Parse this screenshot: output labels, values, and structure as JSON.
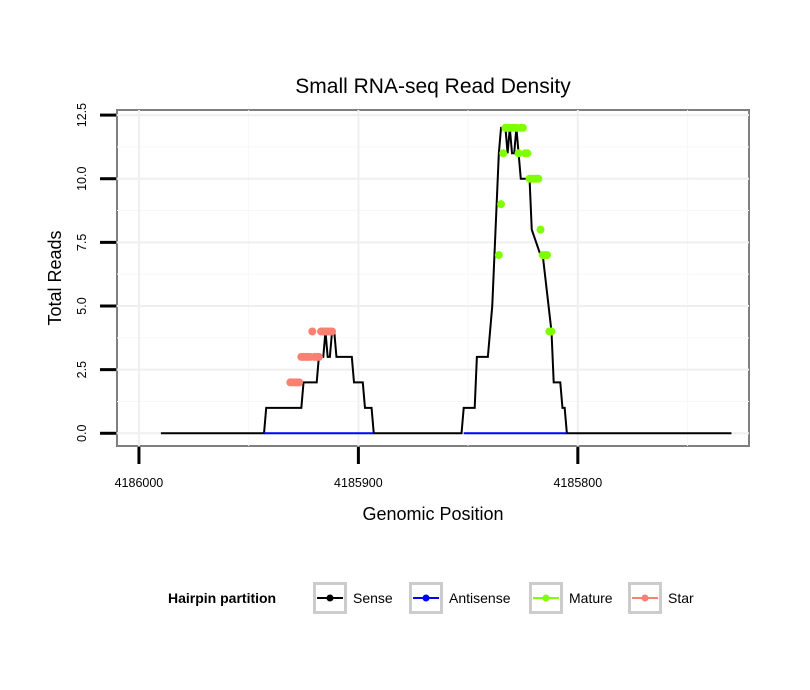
{
  "chart_data": {
    "type": "line",
    "title": "Small RNA-seq Read Density",
    "xlabel": "Genomic Position",
    "ylabel": "Total Reads",
    "xlim": [
      4186010,
      4185722
    ],
    "ylim": [
      -0.5,
      12.7
    ],
    "x_reversed": true,
    "x_ticks": [
      4186000,
      4185900,
      4185800
    ],
    "x_tick_labels": [
      "4186000",
      "4185900",
      "4185800"
    ],
    "y_ticks": [
      0,
      2.5,
      5,
      7.5,
      10,
      12.5
    ],
    "y_tick_labels": [
      "0.0",
      "2.5",
      "5.0",
      "7.5",
      "10.0",
      "12.5"
    ],
    "grid": true,
    "legend": {
      "title": "Hairpin partition",
      "position": "bottom",
      "entries": [
        {
          "name": "Sense",
          "color": "#000000"
        },
        {
          "name": "Antisense",
          "color": "#0000ff"
        },
        {
          "name": "Mature",
          "color": "#7fff00"
        },
        {
          "name": "Star",
          "color": "#fa8072"
        }
      ]
    },
    "series": [
      {
        "name": "Sense",
        "color": "#000000",
        "marker": false,
        "x": [
          4185990,
          4185943,
          4185942,
          4185934,
          4185933,
          4185926,
          4185925,
          4185925,
          4185919,
          4185918,
          4185917,
          4185916,
          4185915,
          4185914,
          4185913,
          4185912,
          4185911,
          4185910,
          4185903,
          4185902,
          4185898,
          4185897,
          4185894,
          4185893,
          4185853,
          4185852,
          4185847,
          4185846,
          4185841,
          4185840,
          4185839,
          4185838,
          4185837,
          4185836,
          4185835,
          4185834,
          4185833,
          4185832,
          4185831,
          4185830,
          4185829,
          4185828,
          4185827,
          4185826,
          4185822,
          4185821,
          4185817,
          4185816,
          4185812,
          4185811,
          4185808,
          4185807,
          4185806,
          4185805,
          4185804,
          4185803,
          4185802,
          4185801,
          4185800,
          4185799,
          4185730
        ],
        "y": [
          0,
          0,
          1,
          1,
          1,
          1,
          2,
          2,
          2,
          3,
          3,
          3,
          4,
          3,
          3,
          4,
          4,
          3,
          3,
          2,
          2,
          1,
          1,
          0,
          0,
          1,
          1,
          3,
          3,
          4,
          5,
          7,
          9,
          11,
          12,
          12,
          12,
          11,
          12,
          11,
          11,
          12,
          11,
          10,
          10,
          8,
          7,
          7,
          4,
          2,
          2,
          1,
          1,
          0,
          0,
          0,
          0,
          0,
          0,
          0,
          0
        ]
      },
      {
        "name": "Antisense",
        "color": "#0000ff",
        "marker": false,
        "segments": [
          {
            "x": [
              4185943,
              4185893
            ],
            "y": [
              0,
              0
            ]
          },
          {
            "x": [
              4185852,
              4185805
            ],
            "y": [
              0,
              0
            ]
          }
        ]
      },
      {
        "name": "Mature",
        "color": "#7fff00",
        "marker": true,
        "x": [
          4185836,
          4185835,
          4185834,
          4185833,
          4185832,
          4185831,
          4185830,
          4185829,
          4185828,
          4185827,
          4185826,
          4185825,
          4185824,
          4185823,
          4185822,
          4185821,
          4185820,
          4185819,
          4185818,
          4185817,
          4185816,
          4185815,
          4185814,
          4185813,
          4185812
        ],
        "y": [
          7,
          9,
          11,
          12,
          12,
          12,
          12,
          12,
          12,
          11,
          12,
          12,
          11,
          11,
          10,
          10,
          10,
          10,
          10,
          8,
          7,
          7,
          7,
          4,
          4
        ]
      },
      {
        "name": "Star",
        "color": "#fa8072",
        "marker": true,
        "x": [
          4185931,
          4185930,
          4185929,
          4185928,
          4185927,
          4185926,
          4185925,
          4185924,
          4185923,
          4185922,
          4185921,
          4185920,
          4185919,
          4185918,
          4185917,
          4185916,
          4185915,
          4185914,
          4185913,
          4185912
        ],
        "y": [
          2,
          2,
          2,
          2,
          2,
          3,
          3,
          3,
          3,
          3,
          4,
          3,
          3,
          3,
          4,
          4,
          4,
          4,
          4,
          4
        ]
      }
    ]
  }
}
